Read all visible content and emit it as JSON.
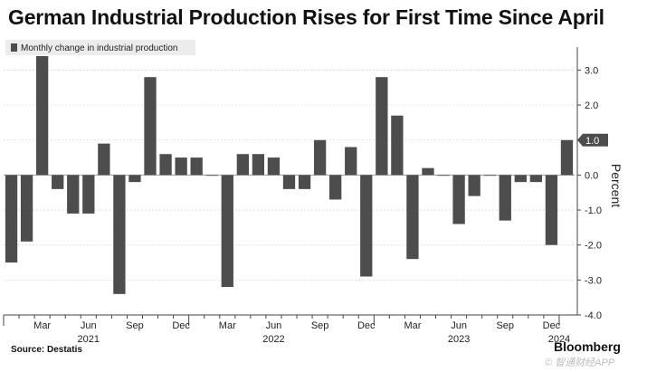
{
  "title": "German Industrial Production Rises for First Time Since April",
  "chart_data": {
    "type": "bar",
    "title": "German Industrial Production Rises for First Time Since April",
    "legend": [
      "Monthly change in industrial production"
    ],
    "legend_position": "top-left",
    "ylabel": "Percent",
    "ylim": [
      -4.0,
      3.4
    ],
    "yticks": [
      "3.0",
      "2.0",
      "1.0",
      "0.0",
      "-1.0",
      "-2.0",
      "-3.0",
      "-4.0"
    ],
    "yticks_values": [
      3,
      2,
      1,
      0,
      -1,
      -2,
      -3,
      -4
    ],
    "last_value_label": "1.0",
    "x_month_labels": [
      "Mar",
      "Jun",
      "Sep",
      "Dec",
      "Mar",
      "Jun",
      "Sep",
      "Dec",
      "Mar",
      "Jun",
      "Sep",
      "Dec"
    ],
    "x_month_label_indices": [
      2,
      5,
      8,
      11,
      14,
      17,
      20,
      23,
      26,
      29,
      32,
      35
    ],
    "x_year_labels": [
      "2021",
      "2022",
      "2023",
      "2024"
    ],
    "x_year_label_indices": [
      5,
      17,
      29,
      35.5
    ],
    "categories": [
      "Jan 2021",
      "Feb 2021",
      "Mar 2021",
      "Apr 2021",
      "May 2021",
      "Jun 2021",
      "Jul 2021",
      "Aug 2021",
      "Sep 2021",
      "Oct 2021",
      "Nov 2021",
      "Dec 2021",
      "Jan 2022",
      "Feb 2022",
      "Mar 2022",
      "Apr 2022",
      "May 2022",
      "Jun 2022",
      "Jul 2022",
      "Aug 2022",
      "Sep 2022",
      "Oct 2022",
      "Nov 2022",
      "Dec 2022",
      "Jan 2023",
      "Feb 2023",
      "Mar 2023",
      "Apr 2023",
      "May 2023",
      "Jun 2023",
      "Jul 2023",
      "Aug 2023",
      "Sep 2023",
      "Oct 2023",
      "Nov 2023",
      "Dec 2023",
      "Jan 2024"
    ],
    "values": [
      -2.5,
      -1.9,
      3.4,
      -0.4,
      -1.1,
      -1.1,
      0.9,
      -3.4,
      -0.2,
      2.8,
      0.6,
      0.5,
      0.5,
      0.0,
      -3.2,
      0.6,
      0.6,
      0.5,
      -0.4,
      -0.4,
      1.0,
      -0.7,
      0.8,
      -2.9,
      2.8,
      1.7,
      -2.4,
      0.2,
      0.0,
      -1.4,
      -0.6,
      0.0,
      -1.3,
      -0.2,
      -0.2,
      -2.0,
      1.0
    ],
    "bar_color": "#4d4d4d",
    "highlight_color": "#4d4d4d"
  },
  "footer": {
    "source": "Source: Destatis",
    "brand": "Bloomberg",
    "watermark": "© 智通财经APP"
  }
}
